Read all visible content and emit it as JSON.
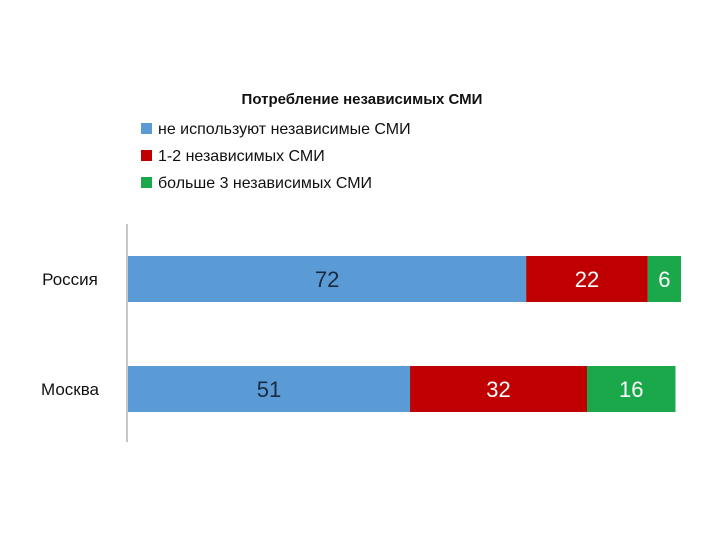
{
  "chart_data": {
    "type": "bar",
    "orientation": "horizontal",
    "stacked": true,
    "title": "Потребление независимых СМИ",
    "categories": [
      "Россия",
      "Москва"
    ],
    "series": [
      {
        "name": "не используют независимые СМИ",
        "values": [
          72,
          51
        ],
        "color": "#5b9bd5",
        "label_color": "#1a2a40"
      },
      {
        "name": "1-2 независимых СМИ",
        "values": [
          22,
          32
        ],
        "color": "#c00000",
        "label_color": "#ffffff"
      },
      {
        "name": "больше 3 независимых СМИ",
        "values": [
          6,
          16
        ],
        "color": "#1aa84b",
        "label_color": "#ffffff"
      }
    ],
    "xlim": [
      0,
      100
    ],
    "legend_position": "top",
    "grid": false
  }
}
